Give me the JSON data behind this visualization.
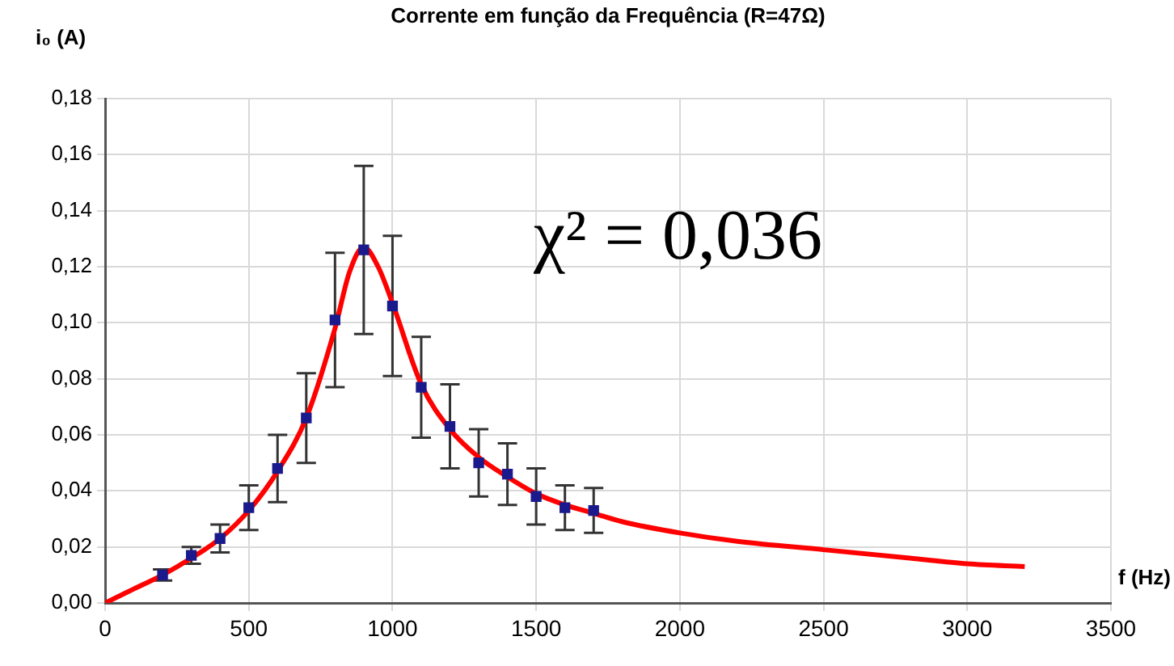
{
  "chart_data": {
    "type": "scatter",
    "title": "Corrente em função da Frequência (R=47Ω)",
    "xlabel": "f (Hz)",
    "ylabel": "i₀ (A)",
    "annotations": [
      "χ² = 0,036"
    ],
    "xlim": [
      0,
      3500
    ],
    "xticks": [
      0,
      500,
      1000,
      1500,
      2000,
      2500,
      3000,
      3500
    ],
    "ylim": [
      0,
      0.18
    ],
    "yticks": [
      {
        "value": 0,
        "label": "0,00"
      },
      {
        "value": 0.02,
        "label": "0,02"
      },
      {
        "value": 0.04,
        "label": "0,04"
      },
      {
        "value": 0.06,
        "label": "0,06"
      },
      {
        "value": 0.08,
        "label": "0,08"
      },
      {
        "value": 0.1,
        "label": "0,10"
      },
      {
        "value": 0.12,
        "label": "0,12"
      },
      {
        "value": 0.14,
        "label": "0,14"
      },
      {
        "value": 0.16,
        "label": "0,16"
      },
      {
        "value": 0.18,
        "label": "0,18"
      }
    ],
    "grid": true,
    "series": [
      {
        "type": "line",
        "color": "#ff0000",
        "marker": "none",
        "x": [
          0,
          100,
          200,
          300,
          400,
          500,
          600,
          700,
          800,
          850,
          900,
          950,
          1000,
          1100,
          1200,
          1300,
          1400,
          1500,
          1600,
          1700,
          1800,
          2000,
          2200,
          2500,
          2800,
          3000,
          3200
        ],
        "values": [
          0,
          0.005,
          0.01,
          0.016,
          0.023,
          0.033,
          0.047,
          0.066,
          0.098,
          0.118,
          0.127,
          0.12,
          0.107,
          0.078,
          0.062,
          0.052,
          0.045,
          0.039,
          0.035,
          0.032,
          0.029,
          0.025,
          0.022,
          0.019,
          0.016,
          0.014,
          0.013
        ]
      },
      {
        "type": "scatter",
        "color": "#1a1a8c",
        "marker": "square",
        "x": [
          200,
          300,
          400,
          500,
          600,
          700,
          800,
          900,
          1000,
          1100,
          1200,
          1300,
          1400,
          1500,
          1600,
          1700
        ],
        "values": [
          0.01,
          0.017,
          0.023,
          0.034,
          0.048,
          0.066,
          0.101,
          0.126,
          0.106,
          0.077,
          0.063,
          0.05,
          0.046,
          0.038,
          0.034,
          0.033
        ],
        "errors": [
          0.002,
          0.003,
          0.005,
          0.008,
          0.012,
          0.016,
          0.024,
          0.03,
          0.025,
          0.018,
          0.015,
          0.012,
          0.011,
          0.01,
          0.008,
          0.008
        ]
      }
    ]
  }
}
